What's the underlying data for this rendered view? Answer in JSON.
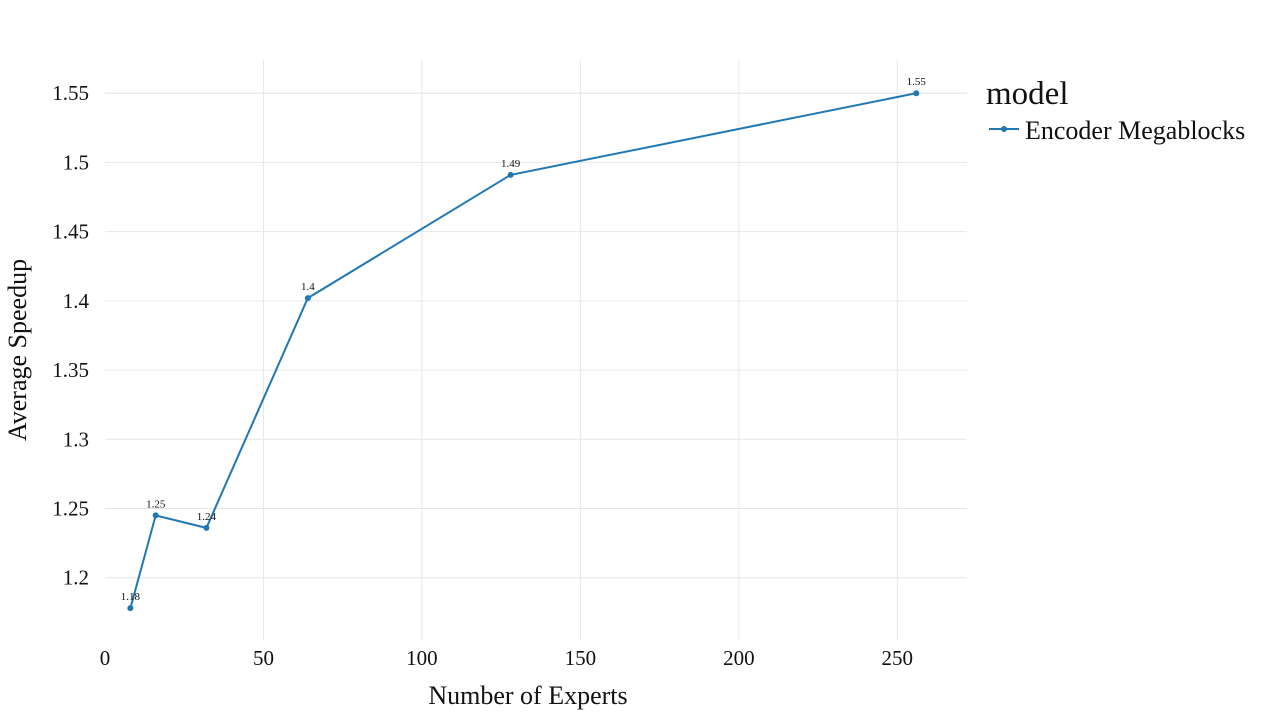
{
  "chart_data": {
    "type": "line",
    "title": "",
    "xlabel": "Number of Experts",
    "ylabel": "Average Speedup",
    "xlim": [
      0,
      272
    ],
    "ylim": [
      1.155,
      1.574
    ],
    "xticks": [
      0,
      50,
      100,
      150,
      200,
      250
    ],
    "yticks": [
      1.2,
      1.25,
      1.3,
      1.35,
      1.4,
      1.45,
      1.5,
      1.55
    ],
    "xtick_labels": [
      "0",
      "50",
      "100",
      "150",
      "200",
      "250"
    ],
    "ytick_labels": [
      "1.2",
      "1.25",
      "1.3",
      "1.35",
      "1.4",
      "1.45",
      "1.5",
      "1.55"
    ],
    "grid": true,
    "legend": {
      "title": "model",
      "position": "right"
    },
    "series": [
      {
        "name": "Encoder Megablocks",
        "color": "#1f77b4",
        "marker": "circle",
        "x": [
          8,
          16,
          32,
          64,
          128,
          256
        ],
        "y": [
          1.178,
          1.245,
          1.236,
          1.402,
          1.491,
          1.55
        ],
        "labels": [
          "1.18",
          "1.25",
          "1.24",
          "1.4",
          "1.49",
          "1.55"
        ]
      }
    ]
  }
}
